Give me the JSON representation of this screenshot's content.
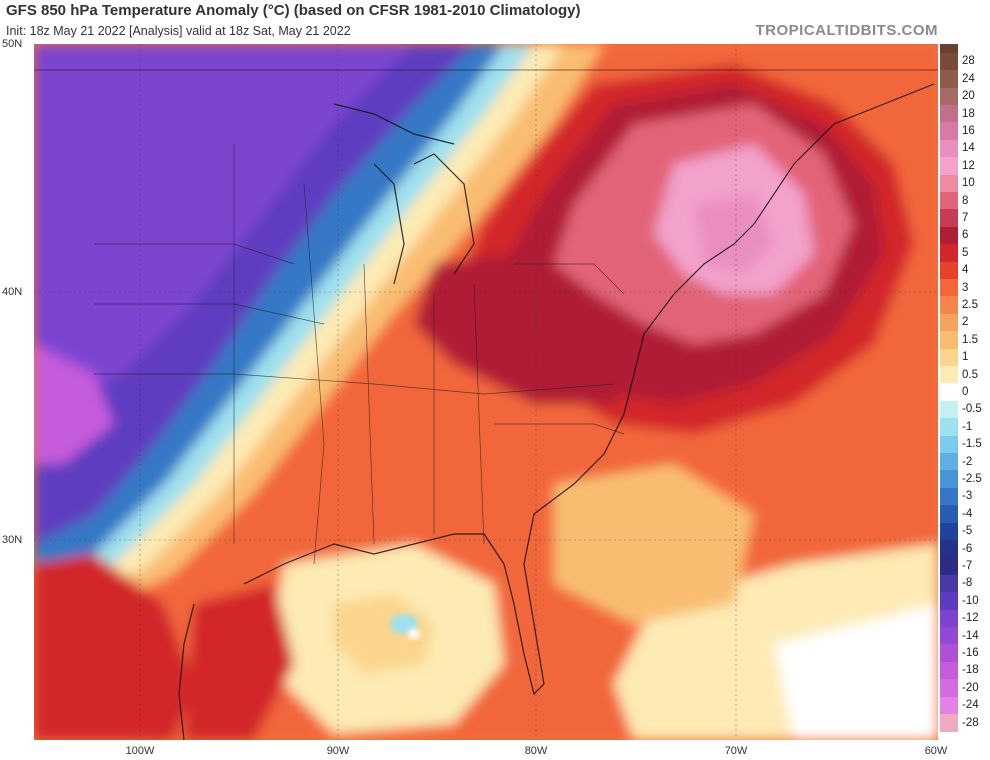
{
  "header": {
    "title": "GFS 850 hPa Temperature Anomaly (°C) (based on CFSR 1981-2010 Climatology)",
    "subtitle": "Init: 18z May 21 2022   [Analysis]   valid at 18z Sat, May 21 2022",
    "brand": "TROPICALTIDBITS.COM"
  },
  "axes": {
    "lat_labels": [
      "50N",
      "40N",
      "30N"
    ],
    "lon_labels": [
      "100W",
      "90W",
      "80W",
      "70W",
      "60W"
    ]
  },
  "legend": {
    "labels": [
      "28",
      "24",
      "20",
      "18",
      "16",
      "14",
      "12",
      "10",
      "8",
      "7",
      "6",
      "5",
      "4",
      "3",
      "2.5",
      "2",
      "1.5",
      "1",
      "0.5",
      "0",
      "-0.5",
      "-1",
      "-1.5",
      "-2",
      "-2.5",
      "-3",
      "-4",
      "-5",
      "-6",
      "-7",
      "-8",
      "-10",
      "-12",
      "-14",
      "-16",
      "-18",
      "-20",
      "-24",
      "-28"
    ],
    "colors": [
      "#7a4a3a",
      "#8f5c4c",
      "#a66b66",
      "#c0708a",
      "#d87aa6",
      "#ea8ec0",
      "#f3a2cc",
      "#f08aa0",
      "#e26478",
      "#c63c54",
      "#b01e34",
      "#d2262a",
      "#e8432a",
      "#f2663a",
      "#f5854a",
      "#f7a35e",
      "#f9bd72",
      "#fbd58c",
      "#fdeab4",
      "#ffffff",
      "#c4f0f4",
      "#9fe0ee",
      "#7ccbec",
      "#5eb0e4",
      "#4894d6",
      "#3678c6",
      "#2a5cb4",
      "#22439c",
      "#243287",
      "#2e2a86",
      "#4a3aa8",
      "#5e3cc0",
      "#7c44d0",
      "#9448d8",
      "#b050d8",
      "#c45cdc",
      "#d46ce0",
      "#e482e4",
      "#eeaac0"
    ]
  },
  "map_colors": {
    "cold_deep": "#7c44d0",
    "cold_mid": "#5e3cc0",
    "cold_blue": "#3678c6",
    "cold_light": "#9fe0ee",
    "neutral": "#fdeab4",
    "warm_light": "#f9bd72",
    "warm": "#f2663a",
    "warm_deep": "#d2262a",
    "hot": "#b01e34",
    "hot_pink": "#e26478",
    "pink": "#f3a2cc",
    "deep_pink": "#d87aa6"
  }
}
